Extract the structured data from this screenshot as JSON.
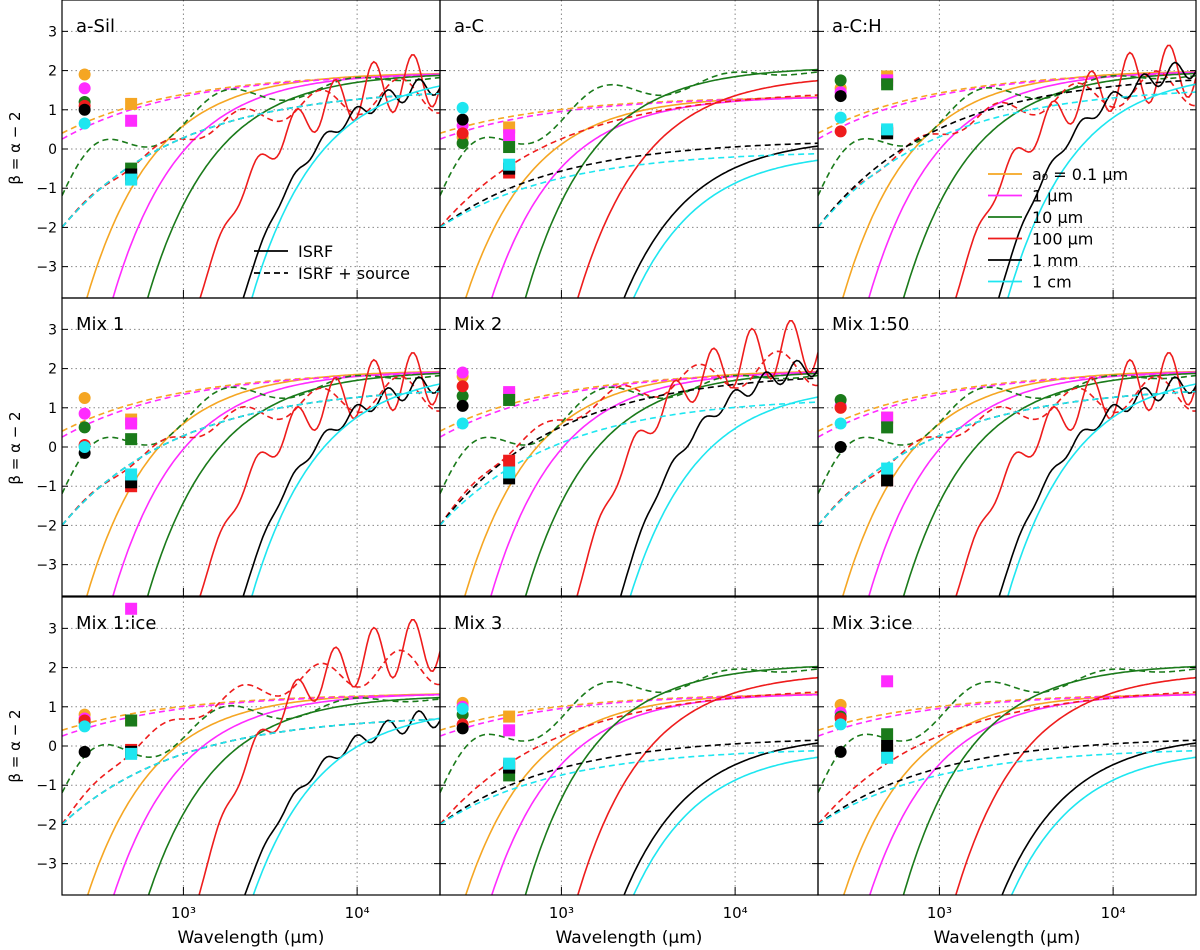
{
  "figure": {
    "ylabel": "β = α − 2",
    "xlabel": "Wavelength (μm)"
  },
  "legend": {
    "sizes": [
      {
        "label": "a₀ = 0.1 μm",
        "color": "#f5a623"
      },
      {
        "label": "1 μm",
        "color": "#ff2bff"
      },
      {
        "label": "10 μm",
        "color": "#1a7a1a"
      },
      {
        "label": "100 μm",
        "color": "#ee1c1c"
      },
      {
        "label": "1 mm",
        "color": "#000000"
      },
      {
        "label": "1 cm",
        "color": "#1ee6f0"
      }
    ],
    "styles": [
      {
        "label": "ISRF",
        "dash": false
      },
      {
        "label": "ISRF + source",
        "dash": true
      }
    ]
  },
  "chart_data": [
    {
      "type": "line",
      "title": "a-Sil",
      "xscale": "log",
      "xlim": [
        200,
        30000
      ],
      "ylim": [
        -3.8,
        3.8
      ],
      "yticks": [
        -3,
        -2,
        -1,
        0,
        1,
        2,
        3
      ],
      "xticks": [
        1000,
        10000
      ],
      "xticklabels": [
        "10³",
        "10⁴"
      ],
      "grid": true,
      "series_profile": "sil",
      "circles_y": [
        1.9,
        1.55,
        1.2,
        1.1,
        1.0,
        0.65
      ],
      "squares_y": [
        1.15,
        0.72,
        -0.5,
        -0.75,
        -0.65,
        -0.78
      ]
    },
    {
      "type": "line",
      "title": "a-C",
      "xscale": "log",
      "xlim": [
        200,
        30000
      ],
      "ylim": [
        -3.8,
        3.8
      ],
      "yticks": [
        -3,
        -2,
        -1,
        0,
        1,
        2,
        3
      ],
      "xticks": [
        1000,
        10000
      ],
      "xticklabels": [
        "10³",
        "10⁴"
      ],
      "grid": true,
      "series_profile": "carbon",
      "circles_y": [
        0.3,
        0.6,
        0.15,
        0.4,
        0.75,
        1.05
      ],
      "squares_y": [
        0.55,
        0.35,
        0.05,
        -0.6,
        -0.5,
        -0.4
      ]
    },
    {
      "type": "line",
      "title": "a-C:H",
      "xscale": "log",
      "xlim": [
        200,
        30000
      ],
      "ylim": [
        -3.8,
        3.8
      ],
      "yticks": [
        -3,
        -2,
        -1,
        0,
        1,
        2,
        3
      ],
      "xticks": [
        1000,
        10000
      ],
      "xticklabels": [
        "10³",
        "10⁴"
      ],
      "grid": true,
      "series_profile": "ach",
      "circles_y": [
        1.55,
        1.45,
        1.75,
        0.45,
        1.35,
        0.8
      ],
      "squares_y": [
        1.85,
        1.75,
        1.65,
        0.45,
        0.4,
        0.5
      ]
    },
    {
      "type": "line",
      "title": "Mix 1",
      "xscale": "log",
      "xlim": [
        200,
        30000
      ],
      "ylim": [
        -3.8,
        3.8
      ],
      "yticks": [
        -3,
        -2,
        -1,
        0,
        1,
        2,
        3
      ],
      "xticks": [
        1000,
        10000
      ],
      "xticklabels": [
        "10³",
        "10⁴"
      ],
      "grid": true,
      "series_profile": "sil",
      "circles_y": [
        1.25,
        0.85,
        0.5,
        0.05,
        -0.15,
        0.0
      ],
      "squares_y": [
        0.7,
        0.6,
        0.2,
        -1.0,
        -0.9,
        -0.7
      ]
    },
    {
      "type": "line",
      "title": "Mix 2",
      "xscale": "log",
      "xlim": [
        200,
        30000
      ],
      "ylim": [
        -3.8,
        3.8
      ],
      "yticks": [
        -3,
        -2,
        -1,
        0,
        1,
        2,
        3
      ],
      "xticks": [
        1000,
        10000
      ],
      "xticklabels": [
        "10³",
        "10⁴"
      ],
      "grid": true,
      "series_profile": "sil2",
      "circles_y": [
        1.8,
        1.9,
        1.3,
        1.55,
        1.05,
        0.6
      ],
      "squares_y": [
        1.35,
        1.4,
        1.2,
        -0.35,
        -0.8,
        -0.65
      ]
    },
    {
      "type": "line",
      "title": "Mix 1:50",
      "xscale": "log",
      "xlim": [
        200,
        30000
      ],
      "ylim": [
        -3.8,
        3.8
      ],
      "yticks": [
        -3,
        -2,
        -1,
        0,
        1,
        2,
        3
      ],
      "xticks": [
        1000,
        10000
      ],
      "xticklabels": [
        "10³",
        "10⁴"
      ],
      "grid": true,
      "series_profile": "sil",
      "circles_y": [
        1.0,
        1.05,
        1.2,
        1.0,
        0.0,
        0.6
      ],
      "squares_y": [
        0.75,
        0.75,
        0.5,
        -0.85,
        -0.85,
        -0.55
      ]
    },
    {
      "type": "line",
      "title": "Mix 1:ice",
      "xscale": "log",
      "xlim": [
        200,
        30000
      ],
      "ylim": [
        -3.8,
        3.8
      ],
      "yticks": [
        -3,
        -2,
        -1,
        0,
        1,
        2,
        3
      ],
      "xticks": [
        1000,
        10000
      ],
      "xticklabels": [
        "10³",
        "10⁴"
      ],
      "grid": true,
      "series_profile": "ice",
      "circles_y": [
        0.8,
        0.7,
        0.6,
        0.65,
        -0.15,
        0.5
      ],
      "squares_y": [
        0.65,
        3.5,
        0.65,
        -0.1,
        -0.15,
        -0.2
      ]
    },
    {
      "type": "line",
      "title": "Mix 3",
      "xscale": "log",
      "xlim": [
        200,
        30000
      ],
      "ylim": [
        -3.8,
        3.8
      ],
      "yticks": [
        -3,
        -2,
        -1,
        0,
        1,
        2,
        3
      ],
      "xticks": [
        1000,
        10000
      ],
      "xticklabels": [
        "10³",
        "10⁴"
      ],
      "grid": true,
      "series_profile": "mix3",
      "circles_y": [
        1.1,
        1.0,
        0.8,
        0.55,
        0.45,
        0.95
      ],
      "squares_y": [
        0.75,
        0.4,
        -0.75,
        -0.5,
        -0.55,
        -0.45
      ]
    },
    {
      "type": "line",
      "title": "Mix 3:ice",
      "xscale": "log",
      "xlim": [
        200,
        30000
      ],
      "ylim": [
        -3.8,
        3.8
      ],
      "yticks": [
        -3,
        -2,
        -1,
        0,
        1,
        2,
        3
      ],
      "xticks": [
        1000,
        10000
      ],
      "xticklabels": [
        "10³",
        "10⁴"
      ],
      "grid": true,
      "series_profile": "mix3",
      "circles_y": [
        1.05,
        0.85,
        0.75,
        0.7,
        -0.15,
        0.55
      ],
      "squares_y": [
        -0.1,
        1.65,
        0.3,
        -0.25,
        0.0,
        -0.3
      ]
    }
  ]
}
